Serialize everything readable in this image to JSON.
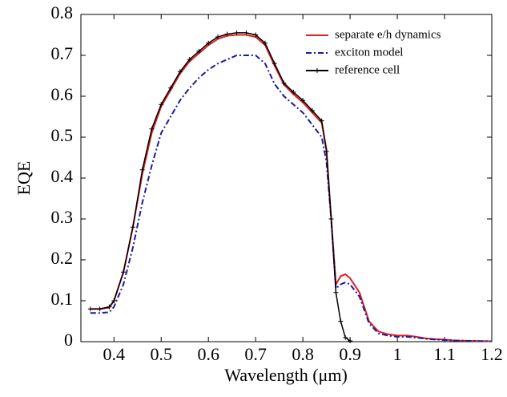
{
  "chart_data": {
    "type": "line",
    "x_label": "Wavelength (μm)",
    "y_label": "EQE",
    "x": [
      0.35,
      0.37,
      0.39,
      0.4,
      0.42,
      0.44,
      0.46,
      0.48,
      0.5,
      0.52,
      0.54,
      0.56,
      0.58,
      0.6,
      0.62,
      0.64,
      0.66,
      0.68,
      0.7,
      0.72,
      0.74,
      0.76,
      0.78,
      0.8,
      0.82,
      0.84,
      0.85,
      0.86,
      0.87,
      0.88,
      0.89,
      0.9,
      0.92,
      0.94,
      0.96,
      0.98,
      1.0,
      1.02,
      1.04,
      1.06,
      1.08,
      1.1,
      1.12,
      1.15,
      1.2
    ],
    "series": [
      {
        "name": "separate e/h dynamics",
        "color": "#e02020",
        "style": "solid",
        "markers": false,
        "values": [
          0.08,
          0.08,
          0.083,
          0.1,
          0.17,
          0.28,
          0.41,
          0.51,
          0.575,
          0.615,
          0.655,
          0.685,
          0.705,
          0.725,
          0.74,
          0.748,
          0.75,
          0.75,
          0.745,
          0.725,
          0.675,
          0.628,
          0.605,
          0.585,
          0.56,
          0.535,
          0.47,
          0.3,
          0.14,
          0.16,
          0.165,
          0.155,
          0.12,
          0.05,
          0.025,
          0.018,
          0.015,
          0.015,
          0.012,
          0.008,
          0.006,
          0.005,
          0.003,
          0.002,
          0.001
        ]
      },
      {
        "name": "exciton model",
        "color": "#1a1a9e",
        "style": "dashdot",
        "markers": false,
        "values": [
          0.07,
          0.07,
          0.072,
          0.085,
          0.14,
          0.23,
          0.34,
          0.43,
          0.51,
          0.55,
          0.59,
          0.62,
          0.645,
          0.665,
          0.68,
          0.69,
          0.7,
          0.7,
          0.7,
          0.68,
          0.63,
          0.6,
          0.58,
          0.56,
          0.53,
          0.5,
          0.44,
          0.3,
          0.13,
          0.14,
          0.145,
          0.14,
          0.11,
          0.045,
          0.02,
          0.015,
          0.012,
          0.012,
          0.01,
          0.007,
          0.005,
          0.004,
          0.003,
          0.002,
          0.001
        ]
      },
      {
        "name": "reference cell",
        "color": "#000000",
        "style": "solid",
        "markers": true,
        "values": [
          0.08,
          0.08,
          0.085,
          0.1,
          0.17,
          0.28,
          0.42,
          0.52,
          0.58,
          0.62,
          0.66,
          0.69,
          0.71,
          0.73,
          0.745,
          0.752,
          0.755,
          0.755,
          0.75,
          0.73,
          0.68,
          0.632,
          0.61,
          0.59,
          0.565,
          0.54,
          0.465,
          0.3,
          0.12,
          0.05,
          0.01,
          0.002,
          null,
          null,
          null,
          null,
          null,
          null,
          null,
          null,
          null,
          null,
          null,
          null,
          null
        ]
      }
    ],
    "xlim": [
      0.33,
      1.2
    ],
    "xticks": [
      0.4,
      0.5,
      0.6,
      0.7,
      0.8,
      0.9,
      1,
      1.1,
      1.2
    ],
    "ylim": [
      0,
      0.8
    ],
    "yticks": [
      0,
      0.1,
      0.2,
      0.3,
      0.4,
      0.5,
      0.6,
      0.7,
      0.8
    ],
    "legend": "upper right",
    "grid": false
  }
}
